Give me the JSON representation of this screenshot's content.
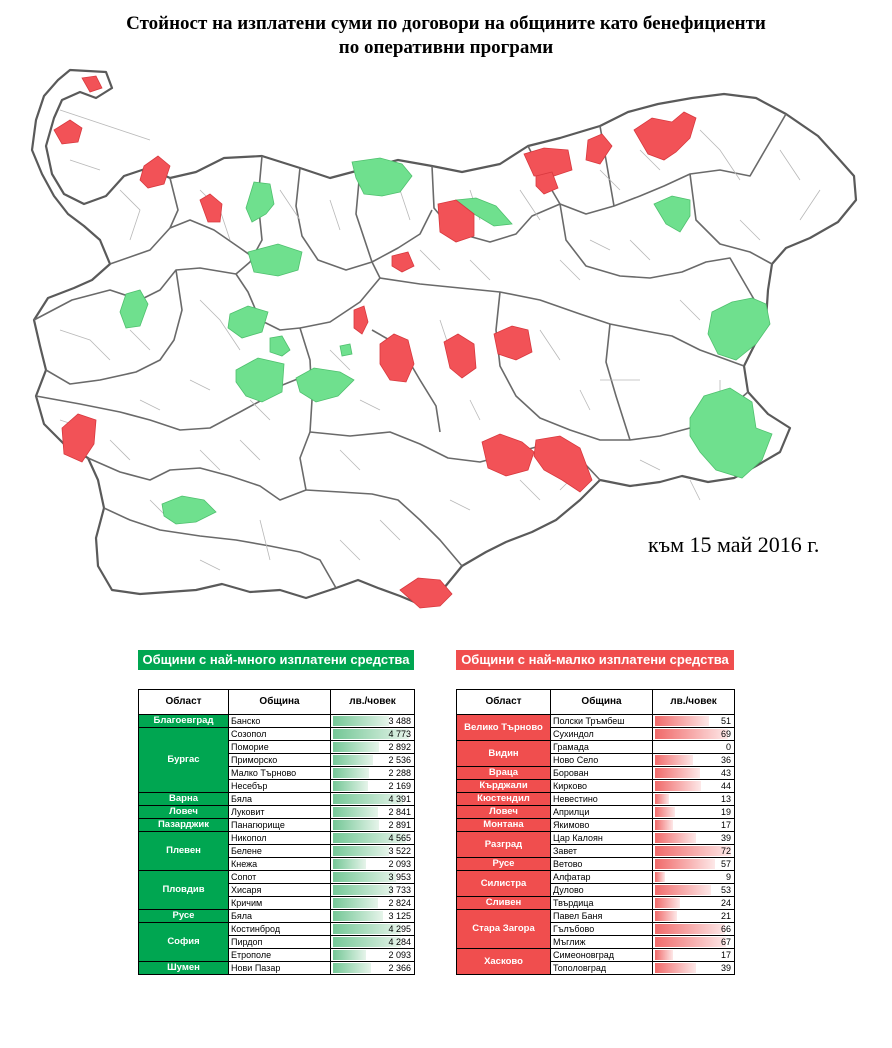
{
  "title": {
    "line1": "Стойност на изплатени суми по договори на общините като бенефициенти",
    "line2": "по оперативни програми"
  },
  "date_label": "към 15 май 2016 г.",
  "colors": {
    "most": "#00a651",
    "least": "#f04e4e",
    "map_green": "#6fe08e",
    "map_red": "#f25257"
  },
  "map": {
    "legend_meaning": {
      "green": "most",
      "red": "least"
    }
  },
  "green_table": {
    "header": "Общини с най-много изплатени средства",
    "columns": [
      "Област",
      "Община",
      "лв./човек"
    ],
    "max_value": 4773,
    "groups": [
      {
        "oblast": "Благоевград",
        "rows": [
          {
            "obshtina": "Банско",
            "value": "3 488",
            "n": 3488
          }
        ]
      },
      {
        "oblast": "Бургас",
        "rows": [
          {
            "obshtina": "Созопол",
            "value": "4 773",
            "n": 4773
          },
          {
            "obshtina": "Поморие",
            "value": "2 892",
            "n": 2892
          },
          {
            "obshtina": "Приморско",
            "value": "2 536",
            "n": 2536
          },
          {
            "obshtina": "Малко Търново",
            "value": "2 288",
            "n": 2288
          },
          {
            "obshtina": "Несебър",
            "value": "2 169",
            "n": 2169
          }
        ]
      },
      {
        "oblast": "Варна",
        "rows": [
          {
            "obshtina": "Бяла",
            "value": "4 391",
            "n": 4391
          }
        ]
      },
      {
        "oblast": "Ловеч",
        "rows": [
          {
            "obshtina": "Луковит",
            "value": "2 841",
            "n": 2841
          }
        ]
      },
      {
        "oblast": "Пазарджик",
        "rows": [
          {
            "obshtina": "Панагюрище",
            "value": "2 891",
            "n": 2891
          }
        ]
      },
      {
        "oblast": "Плевен",
        "rows": [
          {
            "obshtina": "Никопол",
            "value": "4 565",
            "n": 4565
          },
          {
            "obshtina": "Белене",
            "value": "3 522",
            "n": 3522
          },
          {
            "obshtina": "Кнежа",
            "value": "2 093",
            "n": 2093
          }
        ]
      },
      {
        "oblast": "Пловдив",
        "rows": [
          {
            "obshtina": "Сопот",
            "value": "3 953",
            "n": 3953
          },
          {
            "obshtina": "Хисаря",
            "value": "3 733",
            "n": 3733
          },
          {
            "obshtina": "Кричим",
            "value": "2 824",
            "n": 2824
          }
        ]
      },
      {
        "oblast": "Русе",
        "rows": [
          {
            "obshtina": "Бяла",
            "value": "3 125",
            "n": 3125
          }
        ]
      },
      {
        "oblast": "София",
        "rows": [
          {
            "obshtina": "Костинброд",
            "value": "4 295",
            "n": 4295
          },
          {
            "obshtina": "Пирдоп",
            "value": "4 284",
            "n": 4284
          },
          {
            "obshtina": "Етрополе",
            "value": "2 093",
            "n": 2093
          }
        ]
      },
      {
        "oblast": "Шумен",
        "rows": [
          {
            "obshtina": "Нови Пазар",
            "value": "2 366",
            "n": 2366
          }
        ]
      }
    ]
  },
  "red_table": {
    "header": "Общини с най-малко изплатени средства",
    "columns": [
      "Област",
      "Община",
      "лв./човек"
    ],
    "max_value": 72,
    "groups": [
      {
        "oblast": "Велико Търново",
        "rows": [
          {
            "obshtina": "Полски Тръмбеш",
            "value": "51",
            "n": 51
          },
          {
            "obshtina": "Сухиндол",
            "value": "69",
            "n": 69
          }
        ]
      },
      {
        "oblast": "Видин",
        "rows": [
          {
            "obshtina": "Грамада",
            "value": "0",
            "n": 0
          },
          {
            "obshtina": "Ново Село",
            "value": "36",
            "n": 36
          }
        ]
      },
      {
        "oblast": "Враца",
        "rows": [
          {
            "obshtina": "Борован",
            "value": "43",
            "n": 43
          }
        ]
      },
      {
        "oblast": "Кърджали",
        "rows": [
          {
            "obshtina": "Кирково",
            "value": "44",
            "n": 44
          }
        ]
      },
      {
        "oblast": "Кюстендил",
        "rows": [
          {
            "obshtina": "Невестино",
            "value": "13",
            "n": 13
          }
        ]
      },
      {
        "oblast": "Ловеч",
        "rows": [
          {
            "obshtina": "Априлци",
            "value": "19",
            "n": 19
          }
        ]
      },
      {
        "oblast": "Монтана",
        "rows": [
          {
            "obshtina": "Якимово",
            "value": "17",
            "n": 17
          }
        ]
      },
      {
        "oblast": "Разград",
        "rows": [
          {
            "obshtina": "Цар Калоян",
            "value": "39",
            "n": 39
          },
          {
            "obshtina": "Завет",
            "value": "72",
            "n": 72
          }
        ]
      },
      {
        "oblast": "Русе",
        "rows": [
          {
            "obshtina": "Ветово",
            "value": "57",
            "n": 57
          }
        ]
      },
      {
        "oblast": "Силистра",
        "rows": [
          {
            "obshtina": "Алфатар",
            "value": "9",
            "n": 9
          },
          {
            "obshtina": "Дулово",
            "value": "53",
            "n": 53
          }
        ]
      },
      {
        "oblast": "Сливен",
        "rows": [
          {
            "obshtina": "Твърдица",
            "value": "24",
            "n": 24
          }
        ]
      },
      {
        "oblast": "Стара Загора",
        "rows": [
          {
            "obshtina": "Павел Баня",
            "value": "21",
            "n": 21
          },
          {
            "obshtina": "Гълъбово",
            "value": "66",
            "n": 66
          },
          {
            "obshtina": "Мъглиж",
            "value": "67",
            "n": 67
          }
        ]
      },
      {
        "oblast": "Хасково",
        "rows": [
          {
            "obshtina": "Симеоновград",
            "value": "17",
            "n": 17
          },
          {
            "obshtina": "Тополовград",
            "value": "39",
            "n": 39
          }
        ]
      }
    ]
  }
}
